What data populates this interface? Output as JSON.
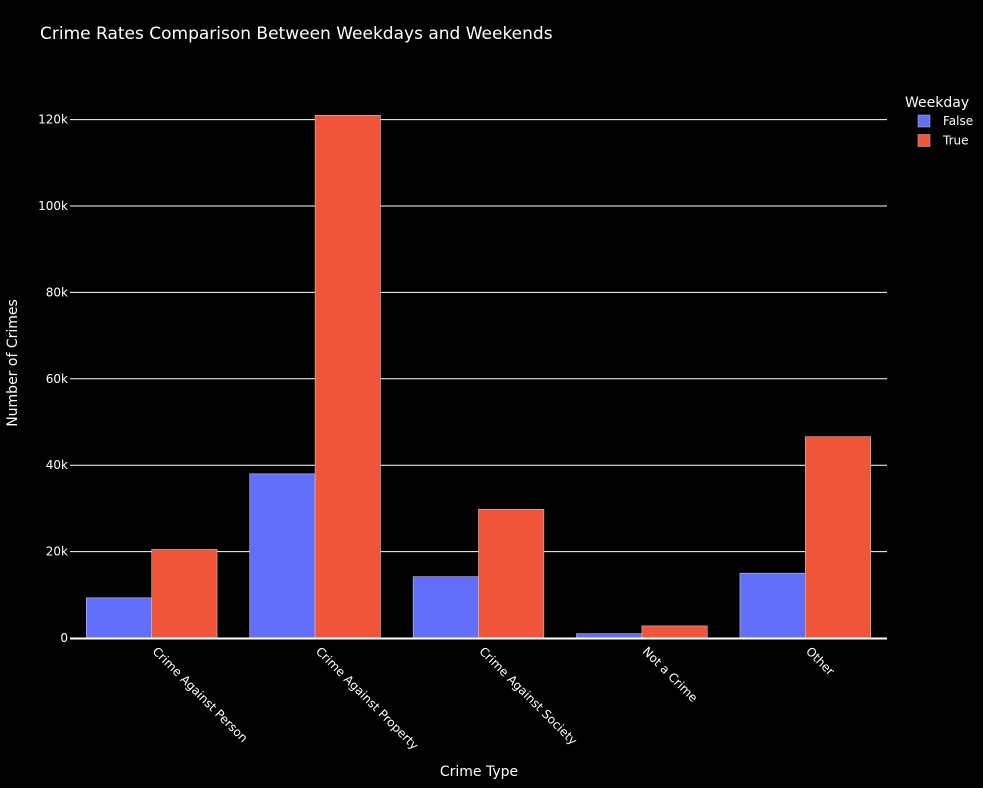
{
  "chart_data": {
    "type": "bar",
    "title": "Crime Rates Comparison Between Weekdays and Weekends",
    "xlabel": "Crime Type",
    "ylabel": "Number of Crimes",
    "categories": [
      "Crime Against Person",
      "Crime Against Property",
      "Crime Against Society",
      "Not a Crime",
      "Other"
    ],
    "series": [
      {
        "name": "False",
        "color": "#636efa",
        "values": [
          9300,
          38000,
          14200,
          1000,
          15000
        ]
      },
      {
        "name": "True",
        "color": "#ef553b",
        "values": [
          20500,
          121000,
          29800,
          2800,
          46600
        ]
      }
    ],
    "ylim": [
      0,
      121000
    ],
    "yticks": [
      0,
      20000,
      40000,
      60000,
      80000,
      100000,
      120000
    ],
    "ytick_labels": [
      "0",
      "20k",
      "40k",
      "60k",
      "80k",
      "100k",
      "120k"
    ],
    "legend": {
      "title": "Weekday",
      "placement": "top-right"
    },
    "grid": true,
    "background": "#000000",
    "gridcolor": "#ffffff"
  }
}
